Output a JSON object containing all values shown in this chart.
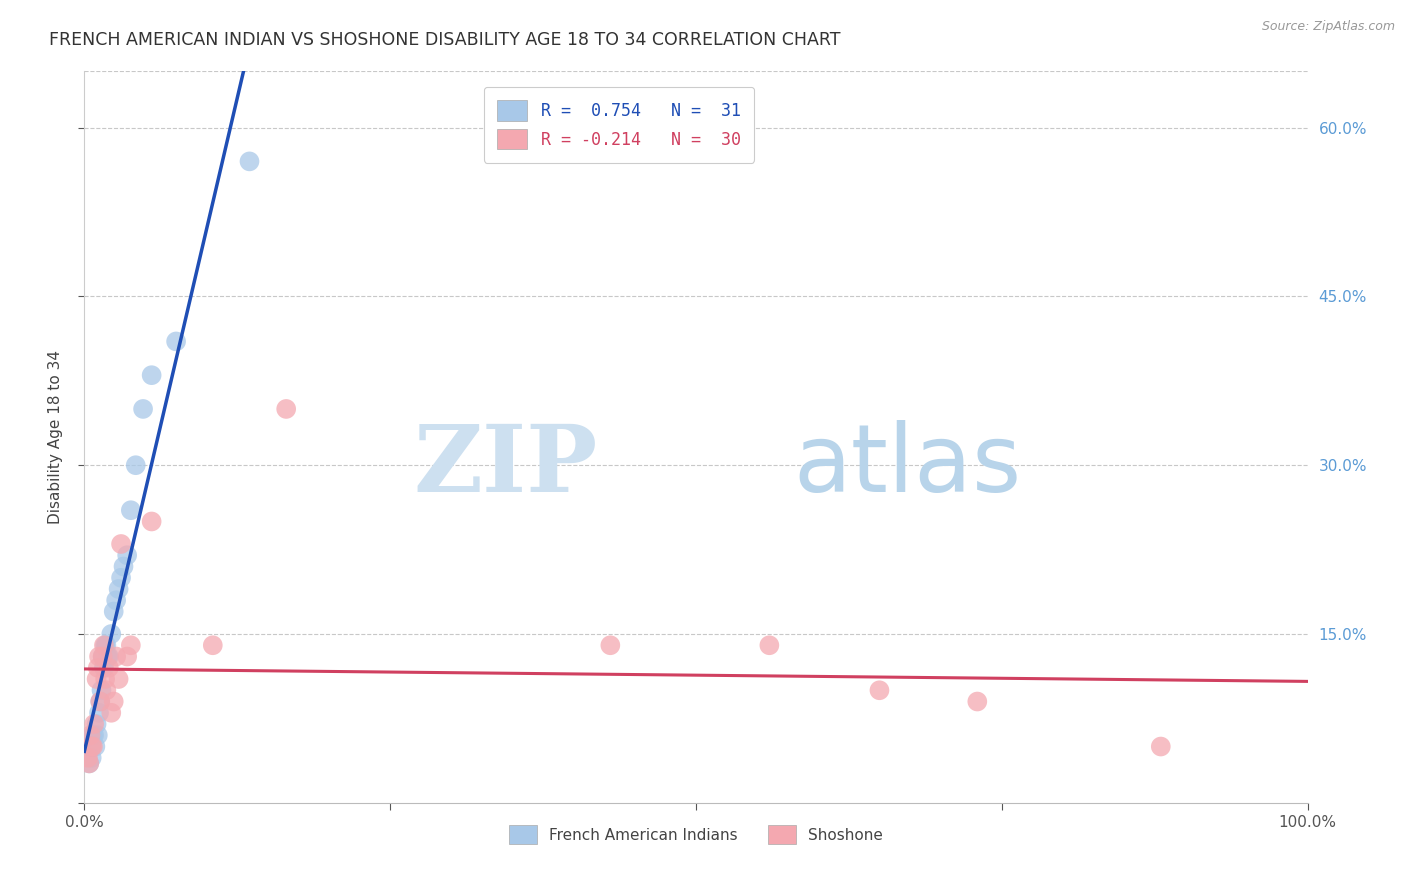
{
  "title": "FRENCH AMERICAN INDIAN VS SHOSHONE DISABILITY AGE 18 TO 34 CORRELATION CHART",
  "source": "Source: ZipAtlas.com",
  "ylabel": "Disability Age 18 to 34",
  "xlim": [
    0.0,
    1.0
  ],
  "ylim": [
    0.0,
    0.65
  ],
  "legend1_label": "R =  0.754   N =  31",
  "legend2_label": "R = -0.214   N =  30",
  "legend_label1": "French American Indians",
  "legend_label2": "Shoshone",
  "blue_color": "#a8c8e8",
  "pink_color": "#f4a8b0",
  "blue_line_color": "#1f4eb5",
  "pink_line_color": "#d04060",
  "blue_x": [
    0.003,
    0.004,
    0.005,
    0.006,
    0.007,
    0.008,
    0.009,
    0.01,
    0.011,
    0.012,
    0.013,
    0.014,
    0.015,
    0.016,
    0.017,
    0.018,
    0.019,
    0.02,
    0.022,
    0.024,
    0.026,
    0.028,
    0.03,
    0.032,
    0.035,
    0.038,
    0.042,
    0.048,
    0.055,
    0.075,
    0.135
  ],
  "blue_y": [
    0.045,
    0.035,
    0.05,
    0.04,
    0.06,
    0.06,
    0.05,
    0.07,
    0.06,
    0.08,
    0.09,
    0.1,
    0.13,
    0.12,
    0.14,
    0.14,
    0.13,
    0.13,
    0.15,
    0.17,
    0.18,
    0.19,
    0.2,
    0.21,
    0.22,
    0.26,
    0.3,
    0.35,
    0.38,
    0.41,
    0.57
  ],
  "pink_x": [
    0.003,
    0.004,
    0.005,
    0.006,
    0.007,
    0.008,
    0.01,
    0.011,
    0.012,
    0.013,
    0.015,
    0.016,
    0.017,
    0.018,
    0.02,
    0.022,
    0.024,
    0.026,
    0.028,
    0.03,
    0.035,
    0.038,
    0.055,
    0.105,
    0.165,
    0.43,
    0.56,
    0.65,
    0.73,
    0.88
  ],
  "pink_y": [
    0.04,
    0.035,
    0.06,
    0.05,
    0.05,
    0.07,
    0.11,
    0.12,
    0.13,
    0.09,
    0.13,
    0.14,
    0.11,
    0.1,
    0.12,
    0.08,
    0.09,
    0.13,
    0.11,
    0.23,
    0.13,
    0.14,
    0.25,
    0.14,
    0.35,
    0.14,
    0.14,
    0.1,
    0.09,
    0.05
  ],
  "background_color": "#ffffff",
  "grid_color": "#c8c8c8"
}
